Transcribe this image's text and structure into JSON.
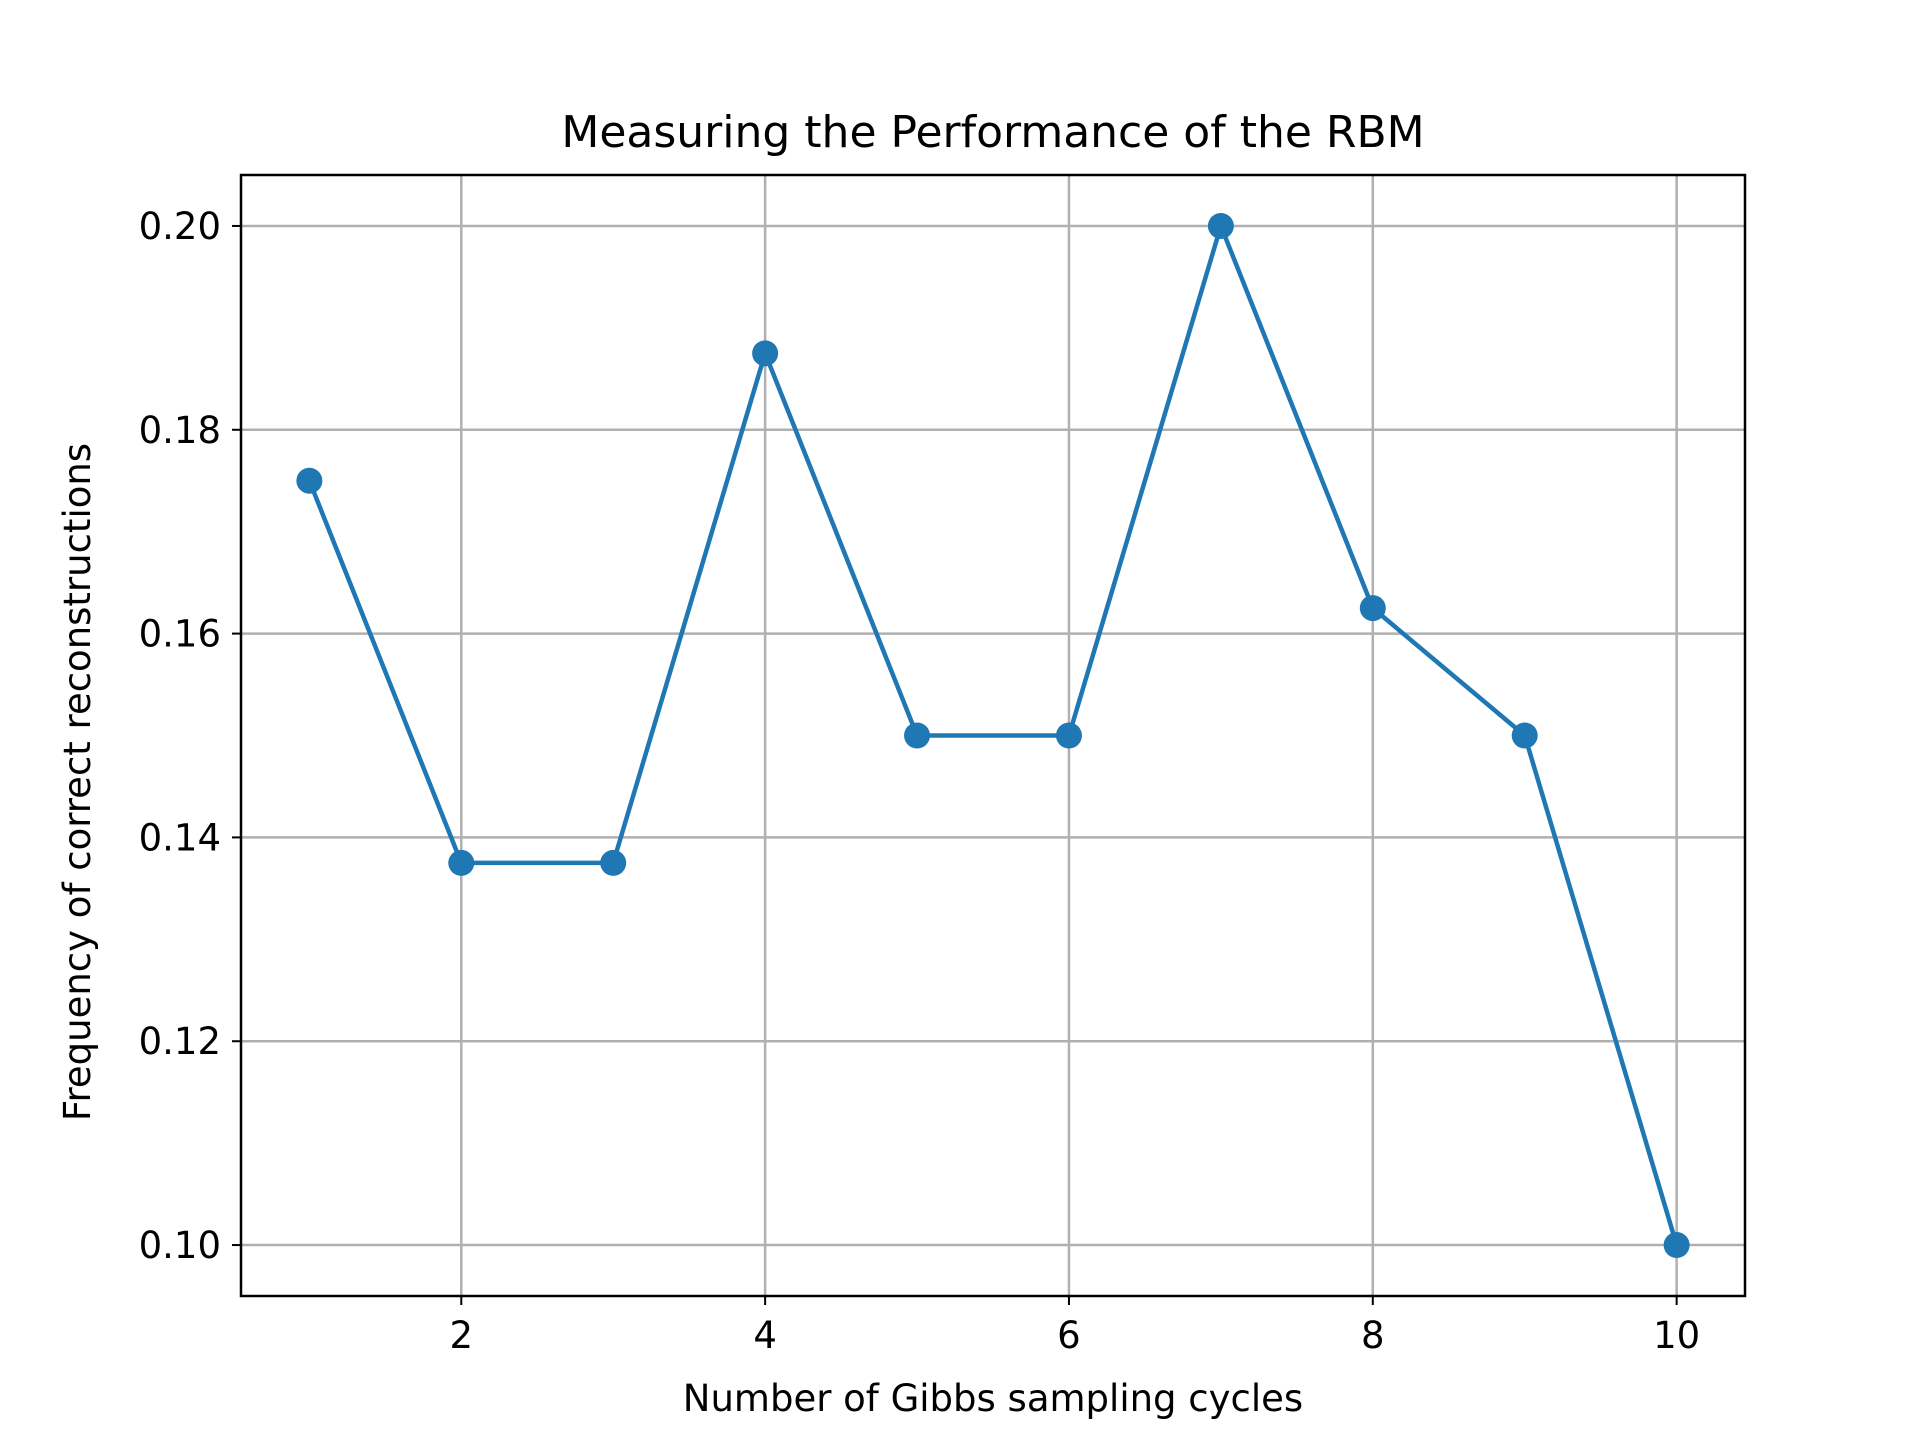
{
  "chart_data": {
    "type": "line",
    "title": "Measuring the Performance of the RBM",
    "xlabel": "Number of Gibbs sampling cycles",
    "ylabel": "Frequency of correct reconstructions",
    "xlim": [
      0.55,
      10.45
    ],
    "ylim": [
      0.095,
      0.205
    ],
    "xticks": [
      2,
      4,
      6,
      8,
      10
    ],
    "xtick_labels": [
      "2",
      "4",
      "6",
      "8",
      "10"
    ],
    "yticks": [
      0.1,
      0.12,
      0.14,
      0.16,
      0.18,
      0.2
    ],
    "ytick_labels": [
      "0.10",
      "0.12",
      "0.14",
      "0.16",
      "0.18",
      "0.20"
    ],
    "grid": true,
    "series": [
      {
        "x": [
          1,
          2,
          3,
          4,
          5,
          6,
          7,
          8,
          9,
          10
        ],
        "y": [
          0.175,
          0.1375,
          0.1375,
          0.1875,
          0.15,
          0.15,
          0.2,
          0.1625,
          0.15,
          0.1
        ],
        "color": "#1f77b4",
        "marker": "circle"
      }
    ]
  }
}
